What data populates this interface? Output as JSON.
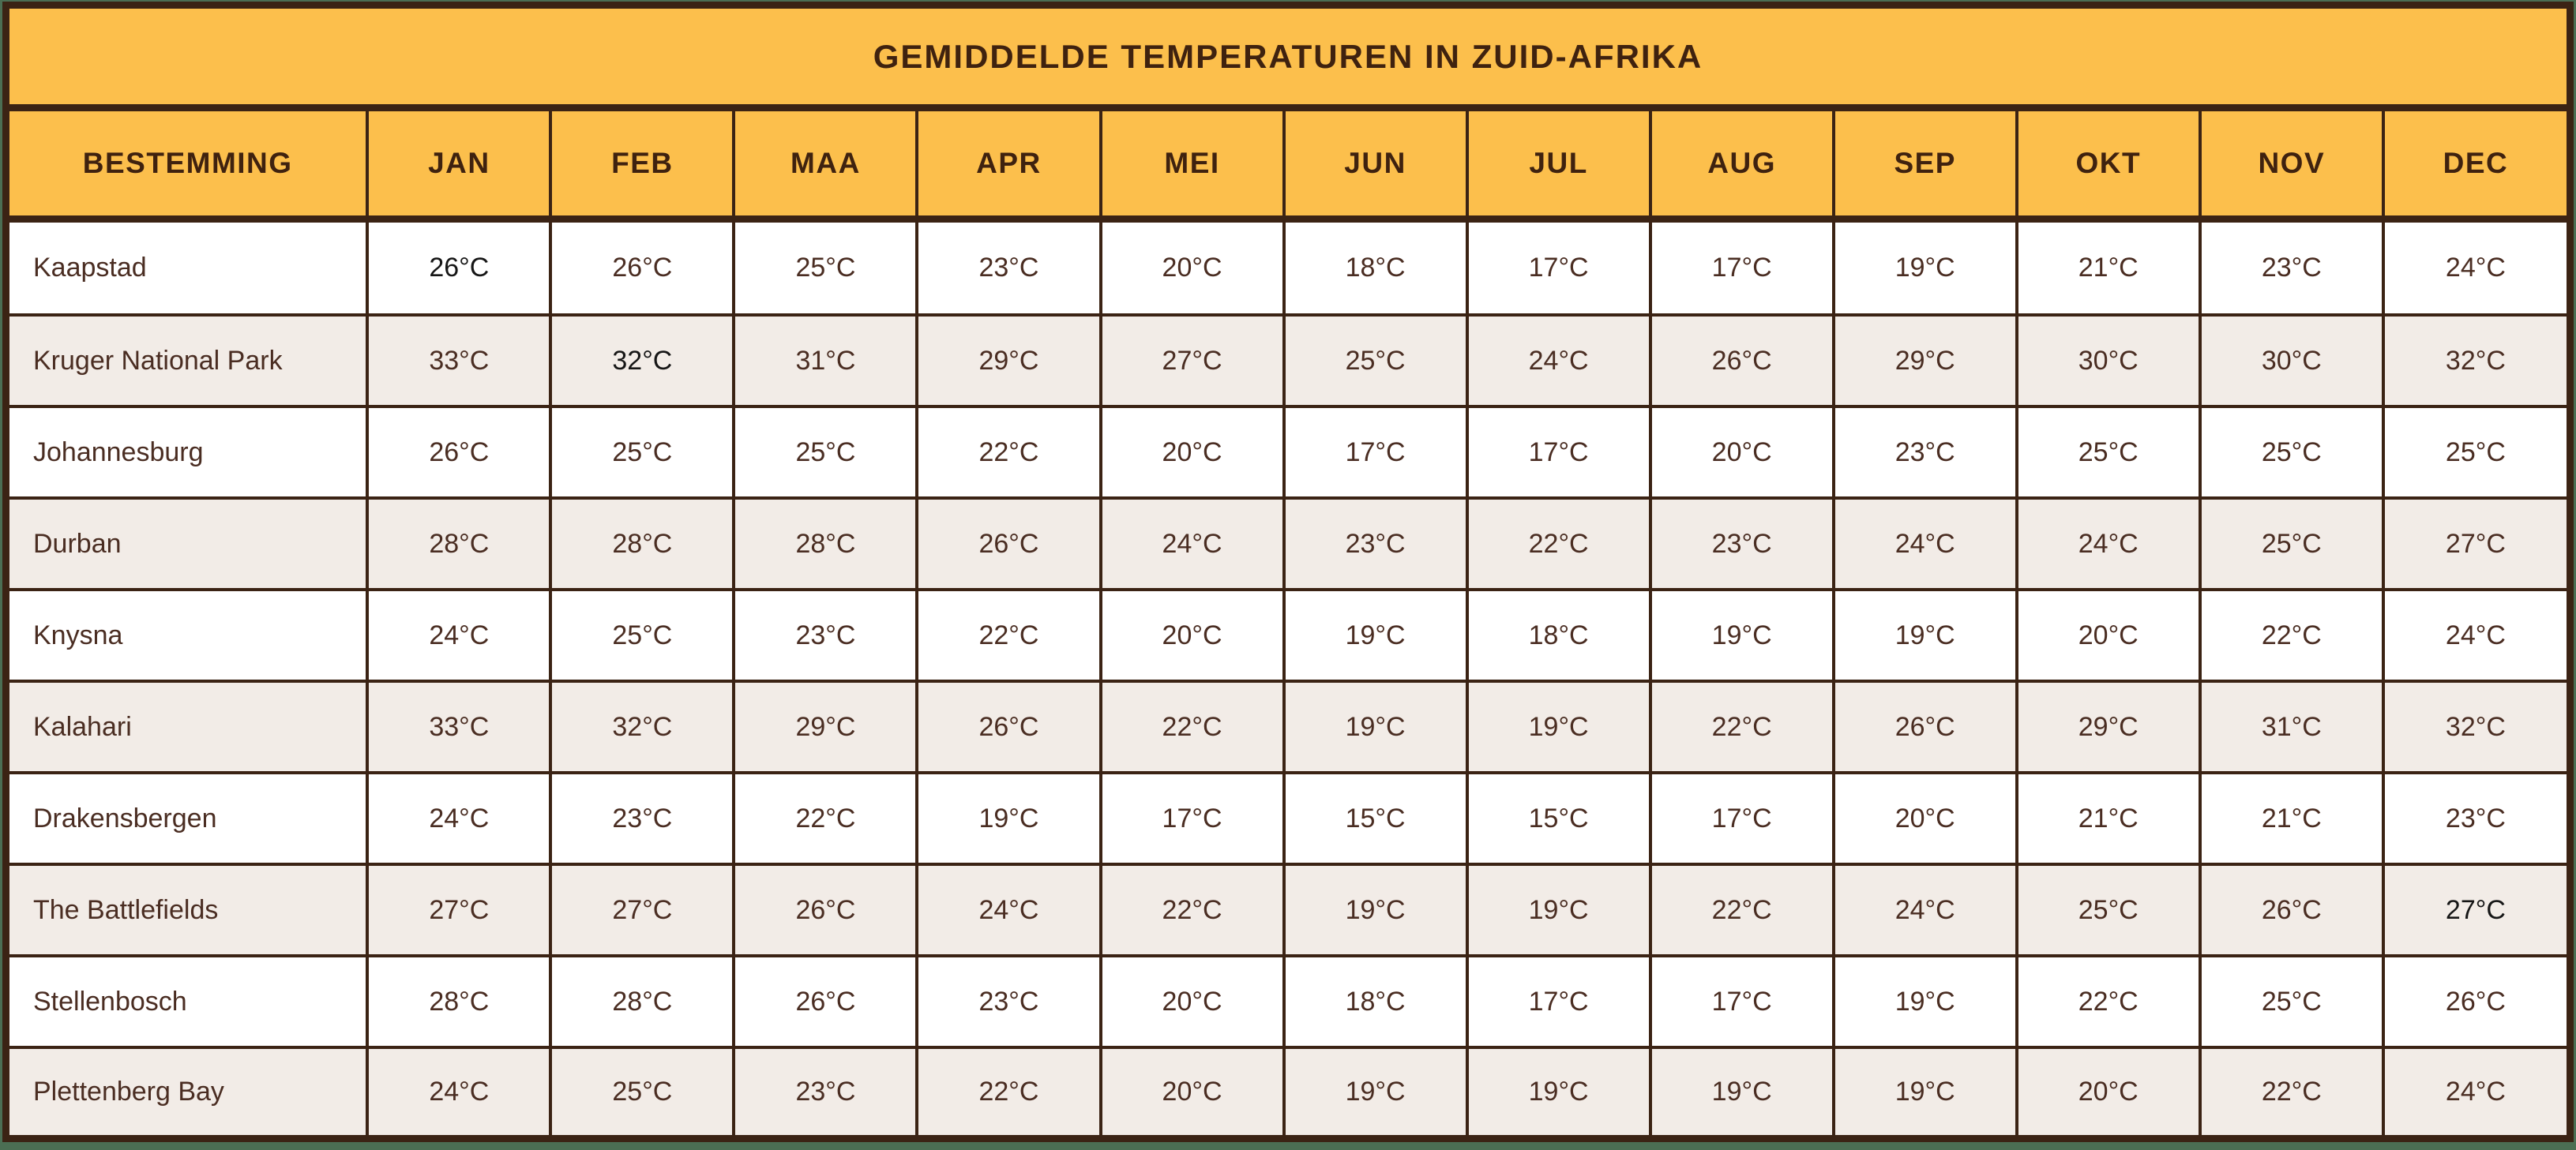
{
  "colors": {
    "header_bg": "#fcbf4c",
    "border_brown": "#3b2314",
    "header_text": "#3f220f",
    "cell_text": "#4a2d22",
    "dark_value_text": "#161616",
    "row_bg": "#ffffff",
    "row_alt_bg": "#f2ece7",
    "outer_frame_green": "#4b6e53"
  },
  "chart_data": {
    "type": "table",
    "title": "GEMIDDELDE TEMPERATUREN IN ZUID-AFRIKA",
    "columns_header": "BESTEMMING",
    "categories": [
      "JAN",
      "FEB",
      "MAA",
      "APR",
      "MEI",
      "JUN",
      "JUL",
      "AUG",
      "SEP",
      "OKT",
      "NOV",
      "DEC"
    ],
    "unit": "°C",
    "series": [
      {
        "name": "Kaapstad",
        "values": [
          26,
          26,
          25,
          23,
          20,
          18,
          17,
          17,
          19,
          21,
          23,
          24
        ]
      },
      {
        "name": "Kruger National Park",
        "values": [
          33,
          32,
          31,
          29,
          27,
          25,
          24,
          26,
          29,
          30,
          30,
          32
        ]
      },
      {
        "name": "Johannesburg",
        "values": [
          26,
          25,
          25,
          22,
          20,
          17,
          17,
          20,
          23,
          25,
          25,
          25
        ]
      },
      {
        "name": "Durban",
        "values": [
          28,
          28,
          28,
          26,
          24,
          23,
          22,
          23,
          24,
          24,
          25,
          27
        ]
      },
      {
        "name": "Knysna",
        "values": [
          24,
          25,
          23,
          22,
          20,
          19,
          18,
          19,
          19,
          20,
          22,
          24
        ]
      },
      {
        "name": "Kalahari",
        "values": [
          33,
          32,
          29,
          26,
          22,
          19,
          19,
          22,
          26,
          29,
          31,
          32
        ]
      },
      {
        "name": "Drakensbergen",
        "values": [
          24,
          23,
          22,
          19,
          17,
          15,
          15,
          17,
          20,
          21,
          21,
          23
        ]
      },
      {
        "name": "The Battlefields",
        "values": [
          27,
          27,
          26,
          24,
          22,
          19,
          19,
          22,
          24,
          25,
          26,
          27
        ]
      },
      {
        "name": "Stellenbosch",
        "values": [
          28,
          28,
          26,
          23,
          20,
          18,
          17,
          17,
          19,
          22,
          25,
          26
        ]
      },
      {
        "name": "Plettenberg Bay",
        "values": [
          24,
          25,
          23,
          22,
          20,
          19,
          19,
          19,
          19,
          20,
          22,
          24
        ]
      }
    ],
    "dark_cells": [
      [
        0,
        0
      ],
      [
        1,
        1
      ],
      [
        7,
        11
      ]
    ],
    "layout": {
      "legend": "none",
      "grid": "full-borders",
      "zebra_striping": true
    }
  }
}
